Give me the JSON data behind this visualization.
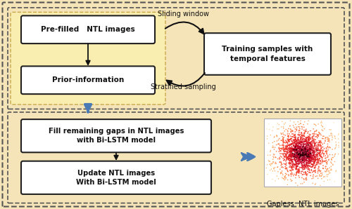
{
  "bg_color": "#f5e4b8",
  "box_fill": "#ffffff",
  "box_edge": "#222222",
  "yellow_box_fill": "#faedb0",
  "yellow_box_edge": "#c8a84b",
  "dashed_color": "#555555",
  "arrow_blue": "#4a7ab5",
  "arrow_black": "#111111",
  "text_box1": "Pre-filled   NTL images",
  "text_box2": "Prior-information",
  "text_box3": "Training samples with\ntemporal features",
  "text_box4": "Fill remaining gaps in NTL images\nwith Bi-LSTM model",
  "text_box5": "Update NTL images\nWith Bi-LSTM model",
  "text_sliding": "Sliding window",
  "text_stratified": "Stratified sampling",
  "text_gapless": "Gapless  NTL images",
  "figsize": [
    5.0,
    2.98
  ],
  "dpi": 100
}
